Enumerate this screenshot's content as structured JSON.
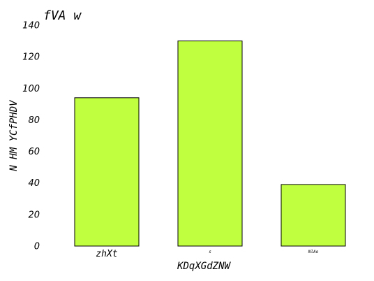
{
  "chart_data": {
    "type": "bar",
    "title": "fVA w",
    "xlabel": "KDqXGdZNW",
    "ylabel": "N HM YCfPHDV",
    "categories": [
      "zhXt",
      "s",
      "NlAo"
    ],
    "values": [
      94,
      130,
      39
    ],
    "ylim": [
      0,
      140
    ],
    "yticks": [
      0,
      20,
      40,
      60,
      80,
      100,
      120,
      140
    ],
    "bar_color": "#bfff3f",
    "grid": false,
    "legend": "none"
  }
}
